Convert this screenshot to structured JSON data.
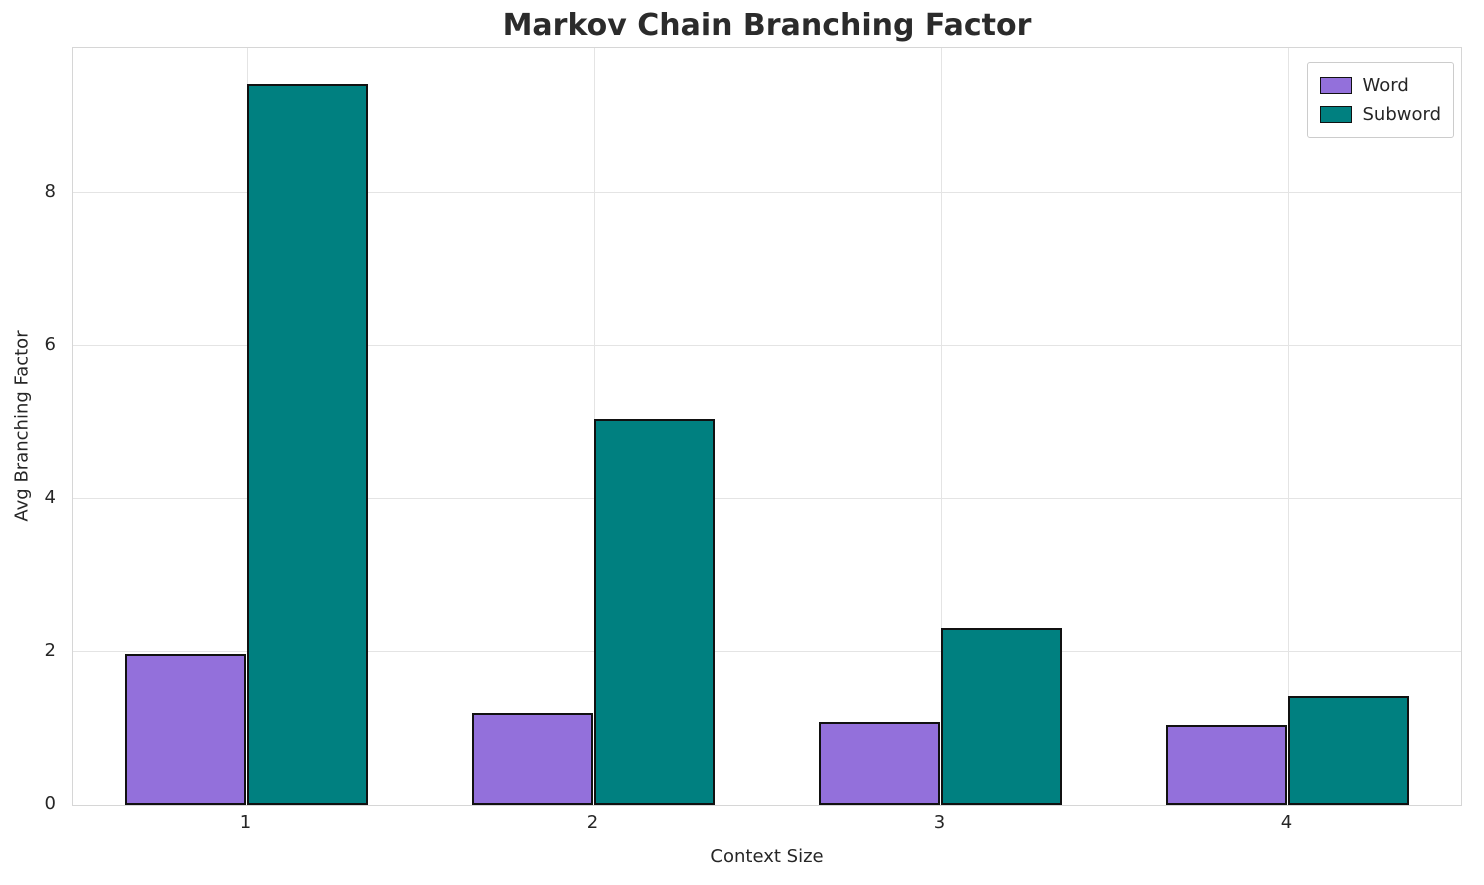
{
  "chart_data": {
    "type": "bar",
    "title": "Markov Chain Branching Factor",
    "xlabel": "Context Size",
    "ylabel": "Avg Branching Factor",
    "categories": [
      "1",
      "2",
      "3",
      "4"
    ],
    "series": [
      {
        "name": "Word",
        "color": "#9370DB",
        "values": [
          1.97,
          1.2,
          1.08,
          1.04
        ]
      },
      {
        "name": "Subword",
        "color": "#008080",
        "values": [
          9.43,
          5.05,
          2.32,
          1.43
        ]
      }
    ],
    "ylim": [
      0,
      9.9
    ],
    "yticks": [
      0,
      2,
      4,
      6,
      8
    ],
    "grid": true,
    "legend_position": "upper right",
    "bar_edge_color": "#111111",
    "bar_group_width_fraction": 0.35
  }
}
